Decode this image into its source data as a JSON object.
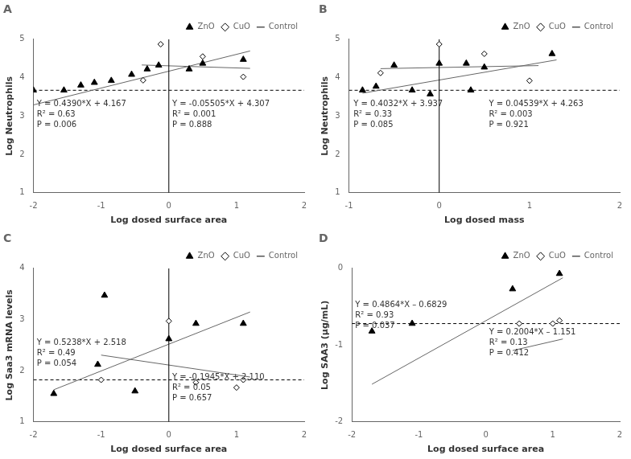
{
  "chart_data": [
    {
      "type": "scatter",
      "title": "A",
      "xlabel": "Log dosed surface area",
      "ylabel": "Log Neutrophils",
      "xlim": [
        -2,
        2
      ],
      "ylim": [
        1,
        5
      ],
      "xticks": [
        -2,
        -1,
        0,
        1,
        2
      ],
      "yticks": [
        1,
        2,
        3,
        4,
        5
      ],
      "grid": false,
      "legend": "upper right",
      "vertical_line": 0,
      "series": [
        {
          "name": "ZnO",
          "type": "scatter",
          "marker": "triangle",
          "color": "black",
          "x": [
            -2.0,
            -1.55,
            -1.3,
            -1.1,
            -0.85,
            -0.55,
            -0.32,
            -0.15,
            0.3,
            0.5,
            1.1
          ],
          "values": [
            3.67,
            3.67,
            3.8,
            3.87,
            3.92,
            4.08,
            4.22,
            4.32,
            4.22,
            4.37,
            4.47
          ]
        },
        {
          "name": "CuO",
          "type": "scatter",
          "marker": "diamond",
          "color": "white",
          "x": [
            -0.38,
            -0.12,
            0.5,
            1.1
          ],
          "values": [
            3.93,
            4.87,
            4.55,
            4.02
          ]
        },
        {
          "name": "Control",
          "type": "line",
          "line_style": "dashed",
          "color": "black",
          "values": [
            3.67
          ]
        },
        {
          "type": "line",
          "color": "#666666",
          "x": [
            -2.0,
            1.2
          ],
          "values": [
            3.289,
            4.6938
          ]
        },
        {
          "type": "line",
          "color": "#666666",
          "x": [
            -0.4,
            1.2
          ],
          "values": [
            4.32902,
            4.24094
          ]
        }
      ],
      "annotations": [
        {
          "text": "Y = 0.4390*X + 4.167\nR² = 0.63\nP = 0.006",
          "x": -1.95,
          "y": 3.42
        },
        {
          "text": "Y = -0.05505*X + 4.307\nR² = 0.001\nP = 0.888",
          "x": 0.05,
          "y": 3.42
        }
      ]
    },
    {
      "type": "scatter",
      "title": "B",
      "xlabel": "Log dosed mass",
      "ylabel": "Log Neutrophils",
      "xlim": [
        -1,
        2
      ],
      "ylim": [
        1,
        5
      ],
      "xticks": [
        -1,
        0,
        1,
        2
      ],
      "yticks": [
        1,
        2,
        3,
        4,
        5
      ],
      "grid": false,
      "legend": "upper right",
      "vertical_line": 0,
      "series": [
        {
          "name": "ZnO",
          "type": "scatter",
          "marker": "triangle",
          "color": "black",
          "x": [
            -0.85,
            -0.7,
            -0.5,
            -0.3,
            -0.1,
            0.0,
            0.3,
            0.35,
            0.5,
            1.25
          ],
          "values": [
            3.67,
            3.77,
            4.32,
            3.67,
            3.57,
            4.37,
            4.37,
            3.67,
            4.27,
            4.62
          ]
        },
        {
          "name": "CuO",
          "type": "scatter",
          "marker": "diamond",
          "color": "white",
          "x": [
            -0.65,
            0.0,
            0.5,
            1.0
          ],
          "values": [
            4.12,
            4.87,
            4.62,
            3.92
          ]
        },
        {
          "name": "Control",
          "type": "line",
          "line_style": "dashed",
          "color": "black",
          "values": [
            3.67
          ]
        },
        {
          "type": "line",
          "color": "#666666",
          "x": [
            -0.85,
            1.3
          ],
          "values": [
            3.59428,
            4.46116
          ]
        },
        {
          "type": "line",
          "color": "#666666",
          "x": [
            -0.65,
            1.1
          ],
          "values": [
            4.2334965,
            4.312929
          ]
        }
      ],
      "annotations": [
        {
          "text": "Y = 0.4032*X + 3.937\nR² = 0.33\nP = 0.085",
          "x": -0.95,
          "y": 3.42
        },
        {
          "text": "Y = 0.04539*X + 4.263\nR² = 0.003\nP = 0.921",
          "x": 0.55,
          "y": 3.42
        }
      ]
    },
    {
      "type": "scatter",
      "title": "C",
      "xlabel": "Log dosed surface area",
      "ylabel": "Log Saa3 mRNA levels",
      "xlim": [
        -2,
        2
      ],
      "ylim": [
        1,
        4
      ],
      "xticks": [
        -2,
        -1,
        0,
        1,
        2
      ],
      "yticks": [
        1,
        2,
        3,
        4
      ],
      "grid": false,
      "legend": "upper right",
      "vertical_line": 0,
      "series": [
        {
          "name": "ZnO",
          "type": "scatter",
          "marker": "triangle",
          "color": "black",
          "x": [
            -1.7,
            -1.05,
            -0.95,
            -0.5,
            0.0,
            0.4,
            1.1
          ],
          "values": [
            1.55,
            2.12,
            3.47,
            1.6,
            2.62,
            2.92,
            2.92
          ]
        },
        {
          "name": "CuO",
          "type": "scatter",
          "marker": "diamond",
          "color": "white",
          "x": [
            -1.0,
            0.0,
            0.4,
            1.0,
            1.1
          ],
          "values": [
            1.82,
            2.97,
            1.77,
            1.67,
            1.82
          ]
        },
        {
          "name": "Control",
          "type": "line",
          "line_style": "dashed",
          "color": "black",
          "values": [
            1.82
          ]
        },
        {
          "type": "line",
          "color": "#666666",
          "x": [
            -1.7,
            1.2
          ],
          "values": [
            1.62754,
            3.14656
          ]
        },
        {
          "type": "line",
          "color": "#666666",
          "x": [
            -1.0,
            1.2
          ],
          "values": [
            2.3045,
            1.8766
          ]
        }
      ],
      "annotations": [
        {
          "text": "Y = 0.5238*X + 2.518\nR² = 0.49\nP = 0.054",
          "x": -1.95,
          "y": 2.62
        },
        {
          "text": "Y = -0.1945*X + 2.110\nR² = 0.05\nP = 0.657",
          "x": 0.05,
          "y": 1.95
        }
      ]
    },
    {
      "type": "scatter",
      "title": "D",
      "xlabel": "Log dosed surface area",
      "ylabel": "Log SAA3 (μg/mL)",
      "xlim": [
        -2,
        2
      ],
      "ylim": [
        -2,
        0
      ],
      "xticks": [
        -2,
        -1,
        0,
        1,
        2
      ],
      "yticks": [
        -2,
        -1,
        0
      ],
      "grid": false,
      "legend": "upper right",
      "series": [
        {
          "name": "ZnO",
          "type": "scatter",
          "marker": "triangle",
          "color": "black",
          "x": [
            -1.7,
            -1.1,
            0.4,
            1.1
          ],
          "values": [
            -0.82,
            -0.72,
            -0.27,
            -0.07
          ]
        },
        {
          "name": "CuO",
          "type": "scatter",
          "marker": "diamond",
          "color": "white",
          "x": [
            0.5,
            1.0,
            1.1
          ],
          "values": [
            -0.72,
            -0.72,
            -0.68
          ]
        },
        {
          "name": "Control",
          "type": "line",
          "line_style": "dashed",
          "color": "black",
          "values": [
            -0.72
          ]
        },
        {
          "type": "line",
          "color": "#666666",
          "x": [
            -1.7,
            1.15
          ],
          "values": [
            -1.50978,
            -0.12354
          ]
        },
        {
          "type": "line",
          "color": "#666666",
          "x": [
            0.4,
            1.15
          ],
          "values": [
            -1.07084,
            -0.92054
          ]
        }
      ],
      "annotations": [
        {
          "text": "Y = 0.4864*X – 0.6829\nR² = 0.93\nP = 0.037",
          "x": -1.95,
          "y": -0.42
        },
        {
          "text": "Y = 0.2004*X – 1.151\nR² = 0.13\nP = 0.412",
          "x": 0.05,
          "y": -0.78
        }
      ]
    }
  ]
}
